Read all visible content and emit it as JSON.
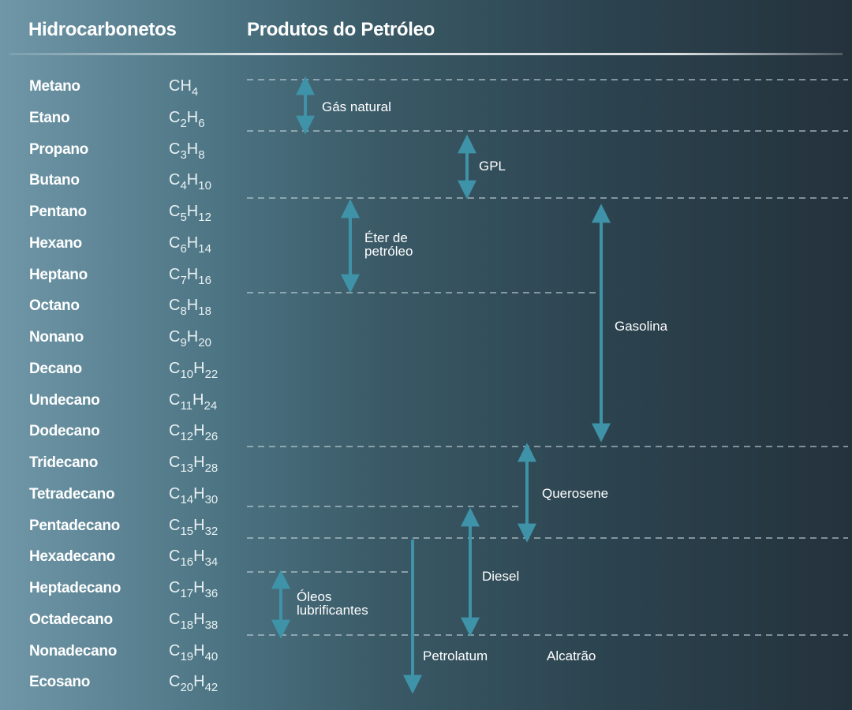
{
  "headers": {
    "hydrocarbons": "Hidrocarbonetos",
    "products": "Produtos do Petróleo"
  },
  "colors": {
    "arrow": "#3f93a8",
    "dashed": "#c7d6dc"
  },
  "hydrocarbons": [
    {
      "name": "Metano",
      "formula": "CH4"
    },
    {
      "name": "Etano",
      "formula": "C2H6"
    },
    {
      "name": "Propano",
      "formula": "C3H8"
    },
    {
      "name": "Butano",
      "formula": "C4H10"
    },
    {
      "name": "Pentano",
      "formula": "C5H12"
    },
    {
      "name": "Hexano",
      "formula": "C6H14"
    },
    {
      "name": "Heptano",
      "formula": "C7H16"
    },
    {
      "name": "Octano",
      "formula": "C8H18"
    },
    {
      "name": "Nonano",
      "formula": "C9H20"
    },
    {
      "name": "Decano",
      "formula": "C10H22"
    },
    {
      "name": "Undecano",
      "formula": "C11H24"
    },
    {
      "name": "Dodecano",
      "formula": "C12H26"
    },
    {
      "name": "Tridecano",
      "formula": "C13H28"
    },
    {
      "name": "Tetradecano",
      "formula": "C14H30"
    },
    {
      "name": "Pentadecano",
      "formula": "C15H32"
    },
    {
      "name": "Hexadecano",
      "formula": "C16H34"
    },
    {
      "name": "Heptadecano",
      "formula": "C17H36"
    },
    {
      "name": "Octadecano",
      "formula": "C18H38"
    },
    {
      "name": "Nonadecano",
      "formula": "C19H40"
    },
    {
      "name": "Ecosano",
      "formula": "C20H42"
    }
  ],
  "products": [
    {
      "key": "gas-natural",
      "lines": [
        "Gás  natural"
      ],
      "from": "Metano",
      "to": "Etano",
      "arrow": "double"
    },
    {
      "key": "gpl",
      "lines": [
        "GPL"
      ],
      "from": "Propano",
      "to": "Butano",
      "arrow": "double"
    },
    {
      "key": "eter-de-petroleo",
      "lines": [
        "Éter  de",
        "petróleo"
      ],
      "from": "Pentano",
      "to": "Heptano",
      "arrow": "double"
    },
    {
      "key": "gasolina",
      "lines": [
        "Gasolina"
      ],
      "from": "Pentano",
      "to": "Dodecano",
      "arrow": "double"
    },
    {
      "key": "querosene",
      "lines": [
        "Querosene"
      ],
      "from": "Tridecano",
      "to": "Pentadecano",
      "arrow": "double"
    },
    {
      "key": "diesel",
      "lines": [
        "Diesel"
      ],
      "from": "Pentadecano",
      "to": "Octadecano",
      "arrow": "double"
    },
    {
      "key": "oleos-lubrificantes",
      "lines": [
        "Óleos",
        "lubrificantes"
      ],
      "from": "Heptadecano",
      "to": "Octadecano",
      "arrow": "double"
    },
    {
      "key": "petrolatum",
      "lines": [
        "Petrolatum"
      ],
      "from": "Hexadecano",
      "to": "Ecosano",
      "arrow": "down"
    },
    {
      "key": "alcatrao",
      "lines": [
        "Alcatrão"
      ],
      "from": "Ecosano",
      "to": "Ecosano",
      "arrow": "none"
    }
  ]
}
